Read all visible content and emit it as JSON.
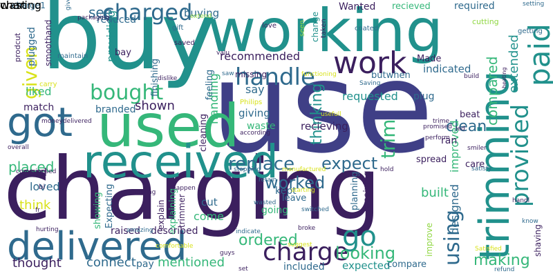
{
  "palette": {
    "dark_purple": "#3b1f5e",
    "indigo": "#403f88",
    "blue": "#2f6a8d",
    "teal": "#21918c",
    "green": "#35b779",
    "lime": "#90d743",
    "yellow": "#d8e21a"
  },
  "words": [
    {
      "text": "use",
      "color": "#3f3f86"
    },
    {
      "text": "charging",
      "color": "#3b1f5e"
    },
    {
      "text": "buy",
      "color": "#21918c"
    },
    {
      "text": "working",
      "color": "#21918c"
    },
    {
      "text": "used",
      "color": "#35b779"
    },
    {
      "text": "got",
      "color": "#2f6a8d"
    },
    {
      "text": "received",
      "color": "#21918c"
    },
    {
      "text": "delivered",
      "color": "#2f6a8d"
    },
    {
      "text": "trimming",
      "color": "#21918c"
    },
    {
      "text": "charged",
      "color": "#2f6a8d"
    },
    {
      "text": "work",
      "color": "#3b1f5e"
    },
    {
      "text": "handle",
      "color": "#2f6a8d"
    },
    {
      "text": "paid",
      "color": "#21918c"
    },
    {
      "text": "bought",
      "color": "#35b779"
    },
    {
      "text": "charge",
      "color": "#3b1f5e"
    },
    {
      "text": "go",
      "color": "#21918c"
    },
    {
      "text": "provided",
      "color": "#21918c"
    },
    {
      "text": "using",
      "color": "#2f6a8d"
    },
    {
      "text": "replace",
      "color": "#2f6a8d"
    },
    {
      "text": "expect",
      "color": "#2f6a8d"
    },
    {
      "text": "ordered",
      "color": "#35b779"
    },
    {
      "text": "looking",
      "color": "#35b779"
    },
    {
      "text": "making",
      "color": "#35b779"
    },
    {
      "text": "worked",
      "color": "#2f6a8d"
    },
    {
      "text": "trim",
      "color": "#35b779"
    },
    {
      "text": "see",
      "color": "#2f6a8d"
    },
    {
      "text": "given",
      "color": "#d8e21a"
    },
    {
      "text": "clean",
      "color": "#2f6a8d"
    },
    {
      "text": "shown",
      "color": "#3b1f5e"
    },
    {
      "text": "thinking",
      "color": "#21918c"
    },
    {
      "text": "extended",
      "color": "#21918c"
    },
    {
      "text": "compared",
      "color": "#35b779"
    },
    {
      "text": "mentioned",
      "color": "#35b779"
    },
    {
      "text": "connect",
      "color": "#2f6a8d"
    },
    {
      "text": "thought",
      "color": "#3b1f5e"
    },
    {
      "text": "placed",
      "color": "#35b779"
    },
    {
      "text": "built",
      "color": "#35b779"
    },
    {
      "text": "designed",
      "color": "#2f6a8d"
    },
    {
      "text": "recommended",
      "color": "#3b1f5e"
    },
    {
      "text": "buying",
      "color": "#2f6a8d"
    },
    {
      "text": "liked",
      "color": "#35b779"
    },
    {
      "text": "handling",
      "color": "#35b779"
    },
    {
      "text": "loved",
      "color": "#2f6a8d"
    },
    {
      "text": "cord",
      "color": "#3b1f5e"
    },
    {
      "text": "think",
      "color": "#d8e21a"
    },
    {
      "text": "cut",
      "color": "#2f6a8d"
    },
    {
      "text": "come",
      "color": "#35b779"
    },
    {
      "text": "say",
      "color": "#2f6a8d"
    },
    {
      "text": "requested",
      "color": "#21918c"
    },
    {
      "text": "giving",
      "color": "#2f6a8d"
    },
    {
      "text": "waste",
      "color": "#35b779"
    },
    {
      "text": "recieving",
      "color": "#3b1f5e"
    },
    {
      "text": "improved",
      "color": "#35b779"
    },
    {
      "text": "expected",
      "color": "#21918c"
    },
    {
      "text": "included",
      "color": "#2f6a8d"
    },
    {
      "text": "indicated",
      "color": "#2f6a8d"
    },
    {
      "text": "branded",
      "color": "#2f6a8d"
    },
    {
      "text": "match",
      "color": "#3b1f5e"
    },
    {
      "text": "reduced",
      "color": "#2f6a8d"
    },
    {
      "text": "required",
      "color": "#2f6a8d"
    },
    {
      "text": "Wanted",
      "color": "#3b1f5e"
    },
    {
      "text": "recieved",
      "color": "#35b779"
    },
    {
      "text": "providing",
      "color": "#21918c"
    },
    {
      "text": "finishing",
      "color": "#2f6a8d"
    },
    {
      "text": "cleaning",
      "color": "#3b1f5e"
    },
    {
      "text": "feeling",
      "color": "#2f6a8d"
    },
    {
      "text": "spread",
      "color": "#3b1f5e"
    },
    {
      "text": "plug",
      "color": "#2f6a8d"
    },
    {
      "text": "beat",
      "color": "#3b1f5e"
    },
    {
      "text": "ran",
      "color": "#3b1f5e"
    },
    {
      "text": "care",
      "color": "#3b1f5e"
    },
    {
      "text": "kept",
      "color": "#2f6a8d"
    },
    {
      "text": "leave",
      "color": "#2f6a8d"
    },
    {
      "text": "going",
      "color": "#35b779"
    },
    {
      "text": "planning",
      "color": "#2f6a8d"
    },
    {
      "text": "receiving",
      "color": "#3b1f5e"
    },
    {
      "text": "compare",
      "color": "#2f6a8d"
    },
    {
      "text": "Expecting",
      "color": "#2f6a8d"
    },
    {
      "text": "explain",
      "color": "#3b1f5e"
    },
    {
      "text": "explaining",
      "color": "#35b779"
    },
    {
      "text": "showing",
      "color": "#35b779"
    },
    {
      "text": "raised",
      "color": "#3b1f5e"
    },
    {
      "text": "described",
      "color": "#3b1f5e"
    },
    {
      "text": "pay",
      "color": "#2f6a8d"
    },
    {
      "text": "Made",
      "color": "#3b1f5e"
    },
    {
      "text": "butwhen",
      "color": "#2f6a8d"
    },
    {
      "text": "bay",
      "color": "#3b1f5e"
    },
    {
      "text": "plugged",
      "color": "#2f6a8d"
    },
    {
      "text": "charge1",
      "color": "#2f6a8d"
    },
    {
      "text": "smoothand",
      "color": "#3b1f5e"
    },
    {
      "text": "trimmer",
      "color": "#3b1f5e"
    },
    {
      "text": "shaving",
      "color": "#3b1f5e"
    },
    {
      "text": "improve",
      "color": "#90d743"
    },
    {
      "text": "change",
      "color": "#21918c"
    },
    {
      "text": "missing",
      "color": "#3b1f5e"
    },
    {
      "text": "cutting",
      "color": "#90d743"
    },
    {
      "text": "getting",
      "color": "#2f6a8d"
    },
    {
      "text": "setting",
      "color": "#2f6a8d"
    },
    {
      "text": "irritating",
      "color": "#2f6a8d"
    },
    {
      "text": "packaging",
      "color": "#3b1f5e"
    },
    {
      "text": "give",
      "color": "#2f6a8d"
    },
    {
      "text": "gift",
      "color": "#2f6a8d"
    },
    {
      "text": "saved",
      "color": "#3b1f5e"
    },
    {
      "text": "love",
      "color": "#3b1f5e"
    },
    {
      "text": "seen",
      "color": "#90d743"
    },
    {
      "text": "taken",
      "color": "#3b1f5e"
    },
    {
      "text": "coated",
      "color": "#2f6a8d"
    },
    {
      "text": "prodcut",
      "color": "#3b1f5e"
    },
    {
      "text": "maintain",
      "color": "#2f6a8d"
    },
    {
      "text": "carry",
      "color": "#d8e21a"
    },
    {
      "text": "dislike",
      "color": "#3b1f5e"
    },
    {
      "text": "valu",
      "color": "#3b1f5e"
    },
    {
      "text": "saw",
      "color": "#2f6a8d"
    },
    {
      "text": "functioning",
      "color": "#d8e21a"
    },
    {
      "text": "Saving",
      "color": "#2f6a8d"
    },
    {
      "text": "build",
      "color": "#3b1f5e"
    },
    {
      "text": "heating",
      "color": "#3b1f5e"
    },
    {
      "text": "Philips",
      "color": "#d8e21a"
    },
    {
      "text": "according",
      "color": "#3b1f5e"
    },
    {
      "text": "usefull",
      "color": "#d8e21a"
    },
    {
      "text": "trime",
      "color": "#3b1f5e"
    },
    {
      "text": "led",
      "color": "#3b1f5e"
    },
    {
      "text": "promised",
      "color": "#3b1f5e"
    },
    {
      "text": "perform",
      "color": "#3b1f5e"
    },
    {
      "text": "smiler",
      "color": "#3b1f5e"
    },
    {
      "text": "satisfy",
      "color": "#2f6a8d"
    },
    {
      "text": "hold",
      "color": "#3b1f5e"
    },
    {
      "text": "stopping",
      "color": "#2f6a8d"
    },
    {
      "text": "manufactured",
      "color": "#d8e21a"
    },
    {
      "text": "comprimised",
      "color": "#3b1f5e"
    },
    {
      "text": "overall",
      "color": "#3b1f5e"
    },
    {
      "text": "moneydelivered",
      "color": "#3b1f5e"
    },
    {
      "text": "retain",
      "color": "#2f6a8d"
    },
    {
      "text": "bi",
      "color": "#3b1f5e"
    },
    {
      "text": "fr",
      "color": "#3b1f5e"
    },
    {
      "text": "hurting",
      "color": "#3b1f5e"
    },
    {
      "text": "amazing",
      "color": "#2f6a8d"
    },
    {
      "text": "holding",
      "color": "#3b1f5e"
    },
    {
      "text": "happen",
      "color": "#3b1f5e"
    },
    {
      "text": "wasted",
      "color": "#2f6a8d"
    },
    {
      "text": "starting",
      "color": "#d8e21a"
    },
    {
      "text": "switched",
      "color": "#2f6a8d"
    },
    {
      "text": "broke",
      "color": "#3b1f5e"
    },
    {
      "text": "suggest",
      "color": "#d8e21a"
    },
    {
      "text": "indicate",
      "color": "#2f6a8d"
    },
    {
      "text": "comfortable",
      "color": "#d8e21a"
    },
    {
      "text": "guys",
      "color": "#3b1f5e"
    },
    {
      "text": "set",
      "color": "#3b1f5e"
    },
    {
      "text": "Satisfied",
      "color": "#d8e21a"
    },
    {
      "text": "handl",
      "color": "#3b1f5e"
    },
    {
      "text": "know",
      "color": "#2f6a8d"
    },
    {
      "text": "refund",
      "color": "#2f6a8d"
    },
    {
      "text": "extend",
      "color": "#90d743"
    },
    {
      "text": "charing",
      "color": "#2f6a8d"
    },
    {
      "text": "wast",
      "color": "#d8e21a"
    }
  ]
}
